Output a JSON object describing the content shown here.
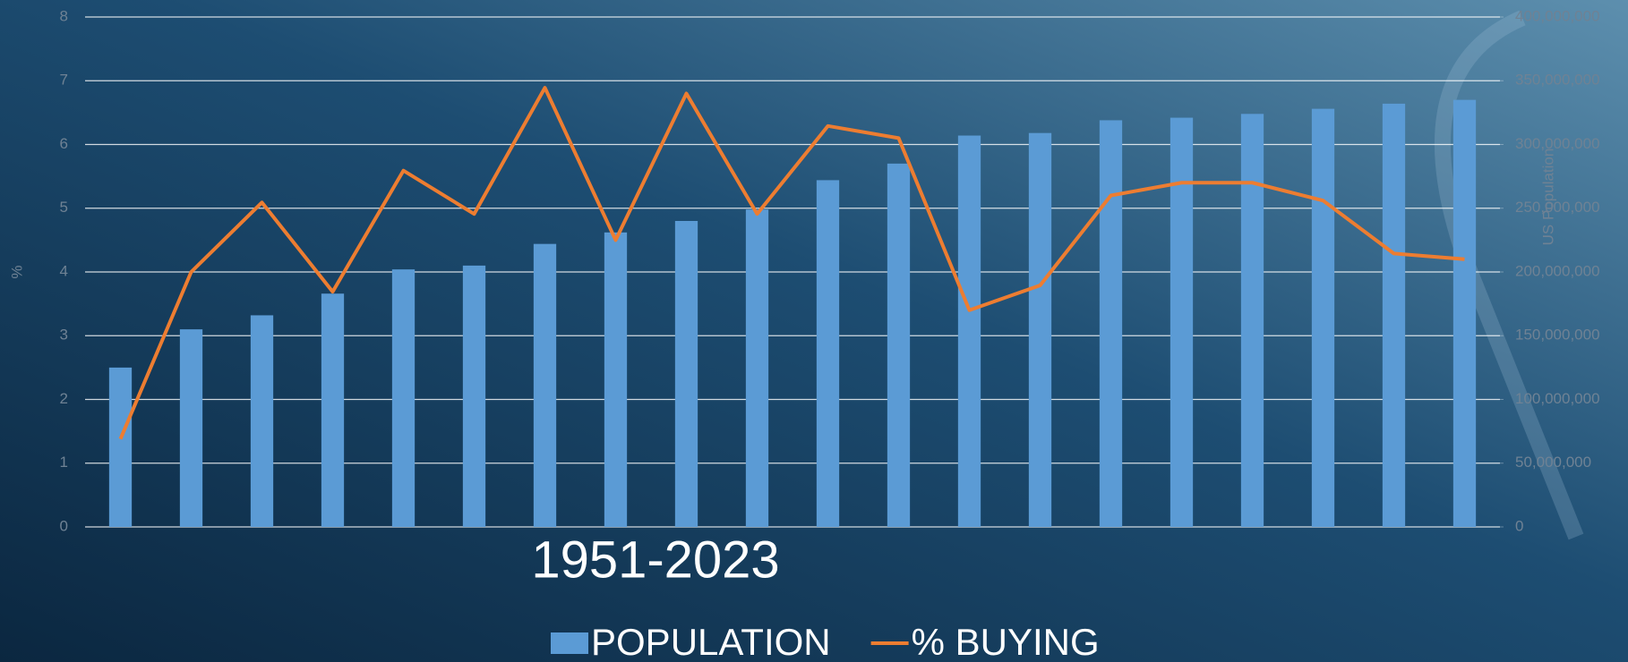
{
  "chart_data": {
    "type": "bar-line",
    "x_label": "1951-2023",
    "y_label": "%",
    "y2_label": "US Population",
    "categories": [
      null,
      null,
      null,
      null,
      null,
      null,
      null,
      null,
      null,
      null,
      null,
      null,
      null,
      null,
      null,
      null,
      null,
      null,
      null,
      null
    ],
    "series": [
      {
        "name": "POPULATION",
        "type": "bar",
        "axis": "y2",
        "color": "#5b9bd5",
        "values": [
          125000000,
          155000000,
          166000000,
          183000000,
          202000000,
          205000000,
          222000000,
          231000000,
          240000000,
          249000000,
          272000000,
          285000000,
          307000000,
          309000000,
          319000000,
          321000000,
          324000000,
          328000000,
          332000000,
          335000000
        ]
      },
      {
        "name": "% BUYING",
        "type": "line",
        "axis": "y",
        "color": "#ed7d31",
        "values": [
          1.38,
          4.0,
          5.09,
          3.69,
          5.59,
          4.91,
          6.89,
          4.5,
          6.8,
          4.91,
          6.29,
          6.1,
          3.4,
          3.79,
          5.2,
          5.4,
          5.4,
          5.12,
          4.29,
          4.2
        ]
      }
    ],
    "ylim": [
      0,
      8
    ],
    "yticks": [
      0,
      1,
      2,
      3,
      4,
      5,
      6,
      7,
      8
    ],
    "y2lim": [
      0,
      400000000
    ],
    "y2ticks": [
      0,
      {
        "value": 50000000,
        "label": "50,000,000"
      },
      {
        "value": 100000000,
        "label": "100,000,000"
      },
      {
        "value": 150000000,
        "label": "150,000,000"
      },
      {
        "value": 200000000,
        "label": "200,000,000"
      },
      {
        "value": 250000000,
        "label": "250,000,000"
      },
      {
        "value": 300000000,
        "label": "300,000,000"
      },
      {
        "value": 350000000,
        "label": "350,000,000"
      },
      {
        "value": 400000000,
        "label": "400,000,000"
      }
    ],
    "grid": true
  }
}
